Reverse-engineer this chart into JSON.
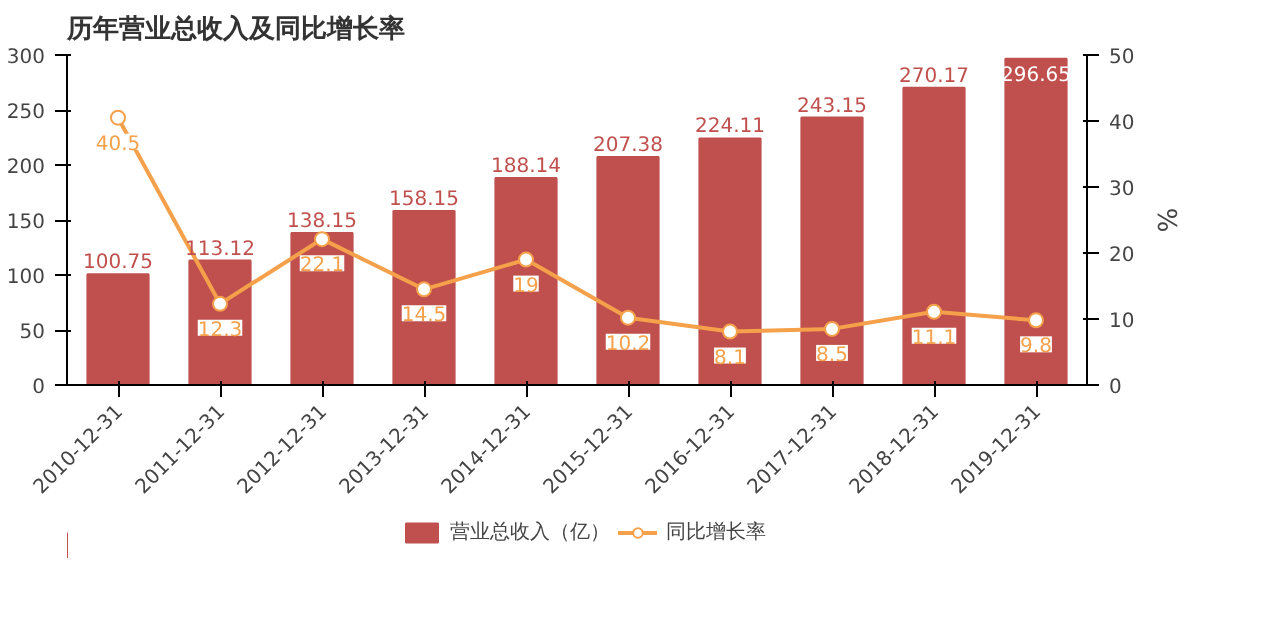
{
  "chart_data": {
    "type": "bar",
    "title": "历年营业总收入及同比增长率",
    "y2label": "%",
    "categories": [
      "2010-12-31",
      "2011-12-31",
      "2012-12-31",
      "2013-12-31",
      "2014-12-31",
      "2015-12-31",
      "2016-12-31",
      "2017-12-31",
      "2018-12-31",
      "2019-12-31"
    ],
    "series": [
      {
        "name": "营业总收入（亿）",
        "color": "#c0504d",
        "values": [
          100.75,
          113.12,
          138.15,
          158.15,
          188.14,
          207.38,
          224.11,
          243.15,
          270.17,
          296.65
        ]
      },
      {
        "name": "同比增长率",
        "type": "line",
        "axis": "y2",
        "color": "#f5a04a",
        "marker": "circle",
        "values": [
          40.5,
          12.3,
          22.1,
          14.5,
          19,
          10.2,
          8.1,
          8.5,
          11.1,
          9.8
        ]
      }
    ],
    "ylim": [
      0,
      300
    ],
    "yticks": [
      0,
      50,
      100,
      150,
      200,
      250,
      300
    ],
    "y2lim": [
      0,
      50
    ],
    "y2ticks": [
      0,
      10,
      20,
      30,
      40,
      50
    ],
    "data_labels": true,
    "grid": false,
    "legend": "bottom"
  }
}
